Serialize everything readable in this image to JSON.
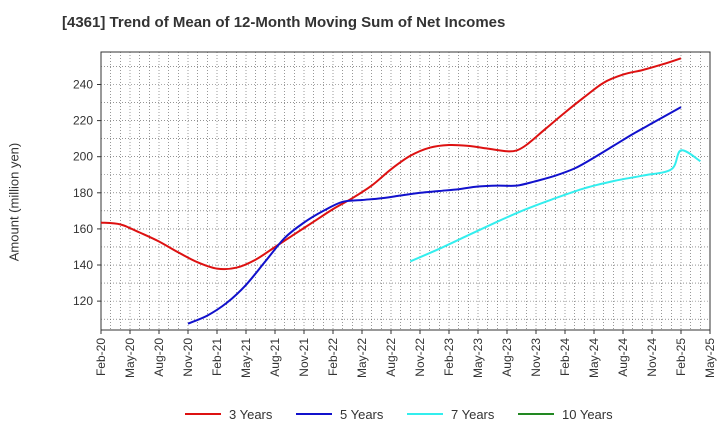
{
  "chart_data": {
    "type": "line",
    "title": "[4361]  Trend of Mean of 12-Month Moving Sum of Net Incomes",
    "xlabel": "",
    "ylabel": "Amount (million yen)",
    "x_ticks": [
      "Feb-20",
      "May-20",
      "Aug-20",
      "Nov-20",
      "Feb-21",
      "May-21",
      "Aug-21",
      "Nov-21",
      "Feb-22",
      "May-22",
      "Aug-22",
      "Nov-22",
      "Feb-23",
      "May-23",
      "Aug-23",
      "Nov-23",
      "Feb-24",
      "May-24",
      "Aug-24",
      "Nov-24",
      "Feb-25",
      "May-25"
    ],
    "y_ticks": [
      120,
      140,
      160,
      180,
      200,
      220,
      240
    ],
    "ylim": [
      104,
      258
    ],
    "grid": true,
    "legend_position": "bottom",
    "series": [
      {
        "name": "3 Years",
        "color": "#dd1111",
        "points": [
          [
            "Feb-20",
            163.5
          ],
          [
            "Apr-20",
            162.5
          ],
          [
            "Jun-20",
            158
          ],
          [
            "Aug-20",
            153
          ],
          [
            "Oct-20",
            147
          ],
          [
            "Dec-20",
            141.5
          ],
          [
            "Feb-21",
            138
          ],
          [
            "Apr-21",
            138.5
          ],
          [
            "Jun-21",
            143
          ],
          [
            "Aug-21",
            150
          ],
          [
            "Oct-21",
            157
          ],
          [
            "Dec-21",
            164
          ],
          [
            "Feb-22",
            171
          ],
          [
            "Apr-22",
            177
          ],
          [
            "Jun-22",
            184
          ],
          [
            "Aug-22",
            193
          ],
          [
            "Oct-22",
            200.5
          ],
          [
            "Dec-22",
            205
          ],
          [
            "Feb-23",
            206.5
          ],
          [
            "Apr-23",
            206
          ],
          [
            "Jun-23",
            204.5
          ],
          [
            "Aug-23",
            203
          ],
          [
            "Sep-23",
            203.5
          ],
          [
            "Oct-23",
            206.5
          ],
          [
            "Dec-23",
            215.5
          ],
          [
            "Feb-24",
            224.5
          ],
          [
            "Apr-24",
            233
          ],
          [
            "Jun-24",
            241
          ],
          [
            "Aug-24",
            245.5
          ],
          [
            "Oct-24",
            248
          ],
          [
            "Dec-24",
            251
          ],
          [
            "Feb-25",
            254.5
          ]
        ]
      },
      {
        "name": "5 Years",
        "color": "#1111cc",
        "points": [
          [
            "Nov-20",
            107.5
          ],
          [
            "Jan-21",
            112
          ],
          [
            "Mar-21",
            119
          ],
          [
            "May-21",
            129
          ],
          [
            "Jul-21",
            142
          ],
          [
            "Sep-21",
            155
          ],
          [
            "Nov-21",
            163.5
          ],
          [
            "Jan-22",
            170
          ],
          [
            "Mar-22",
            175
          ],
          [
            "May-22",
            176
          ],
          [
            "Jul-22",
            177
          ],
          [
            "Sep-22",
            178.5
          ],
          [
            "Nov-22",
            180
          ],
          [
            "Jan-23",
            181
          ],
          [
            "Mar-23",
            182
          ],
          [
            "May-23",
            183.5
          ],
          [
            "Jul-23",
            184
          ],
          [
            "Sep-23",
            184
          ],
          [
            "Nov-23",
            186.5
          ],
          [
            "Jan-24",
            189.5
          ],
          [
            "Mar-24",
            193.5
          ],
          [
            "May-24",
            199.5
          ],
          [
            "Jul-24",
            206
          ],
          [
            "Sep-24",
            212.5
          ],
          [
            "Nov-24",
            218.5
          ],
          [
            "Feb-25",
            227.5
          ]
        ]
      },
      {
        "name": "7 Years",
        "color": "#33eeee",
        "points": [
          [
            "Oct-22",
            142
          ],
          [
            "Jan-23",
            149
          ],
          [
            "Apr-23",
            156.5
          ],
          [
            "Jul-23",
            164
          ],
          [
            "Oct-23",
            171
          ],
          [
            "Jan-24",
            177
          ],
          [
            "Apr-24",
            182.5
          ],
          [
            "Jul-24",
            186.5
          ],
          [
            "Oct-24",
            189.5
          ],
          [
            "Jan-25",
            193
          ],
          [
            "Apr-25",
            197.5
          ],
          [
            "Feb-25",
            203.5
          ]
        ]
      },
      {
        "name": "10 Years",
        "color": "#228822",
        "points": []
      }
    ]
  }
}
